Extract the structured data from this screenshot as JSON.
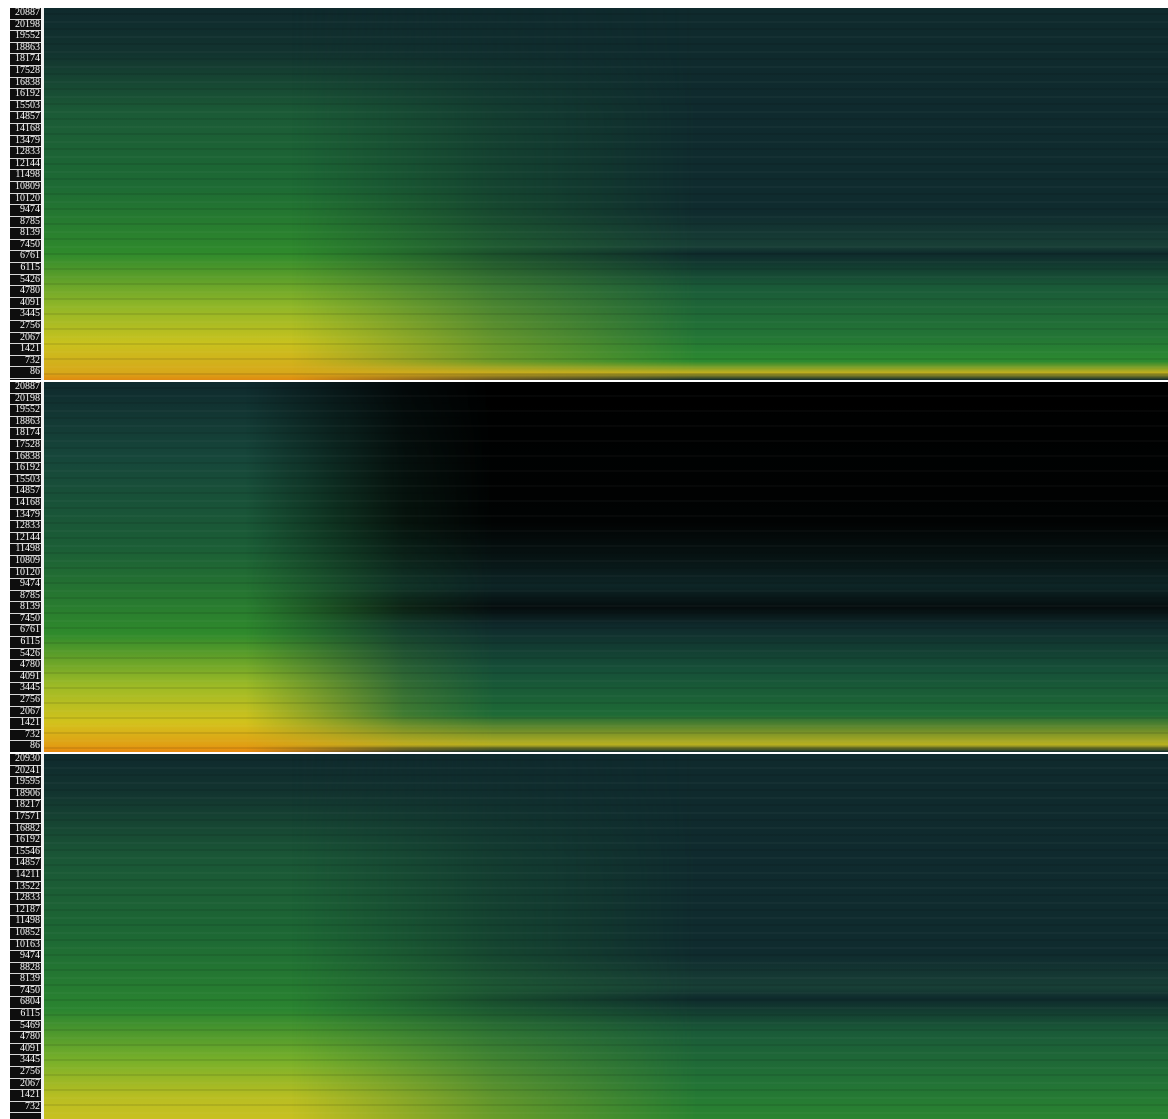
{
  "panels": [
    {
      "labels": [
        "20887",
        "20198",
        "19552",
        "18863",
        "18174",
        "17528",
        "16838",
        "16192",
        "15503",
        "14857",
        "14168",
        "13479",
        "12833",
        "12144",
        "11498",
        "10809",
        "10120",
        "9474",
        "8785",
        "8139",
        "7450",
        "6761",
        "6115",
        "5426",
        "4780",
        "4091",
        "3445",
        "2756",
        "2067",
        "1421",
        "732",
        "86"
      ]
    },
    {
      "labels": [
        "20887",
        "20198",
        "19552",
        "18863",
        "18174",
        "17528",
        "16838",
        "16192",
        "15503",
        "14857",
        "14168",
        "13479",
        "12833",
        "12144",
        "11498",
        "10809",
        "10120",
        "9474",
        "8785",
        "8139",
        "7450",
        "6761",
        "6115",
        "5426",
        "4780",
        "4091",
        "3445",
        "2756",
        "2067",
        "1421",
        "732",
        "86"
      ]
    },
    {
      "labels": [
        "20930",
        "20241",
        "19595",
        "18906",
        "18217",
        "17571",
        "16882",
        "16192",
        "15546",
        "14857",
        "14211",
        "13522",
        "12833",
        "12187",
        "11498",
        "10852",
        "10163",
        "9474",
        "8828",
        "8139",
        "7450",
        "6804",
        "6115",
        "5469",
        "4780",
        "4091",
        "3445",
        "2756",
        "2067",
        "1421",
        "732"
      ]
    }
  ]
}
